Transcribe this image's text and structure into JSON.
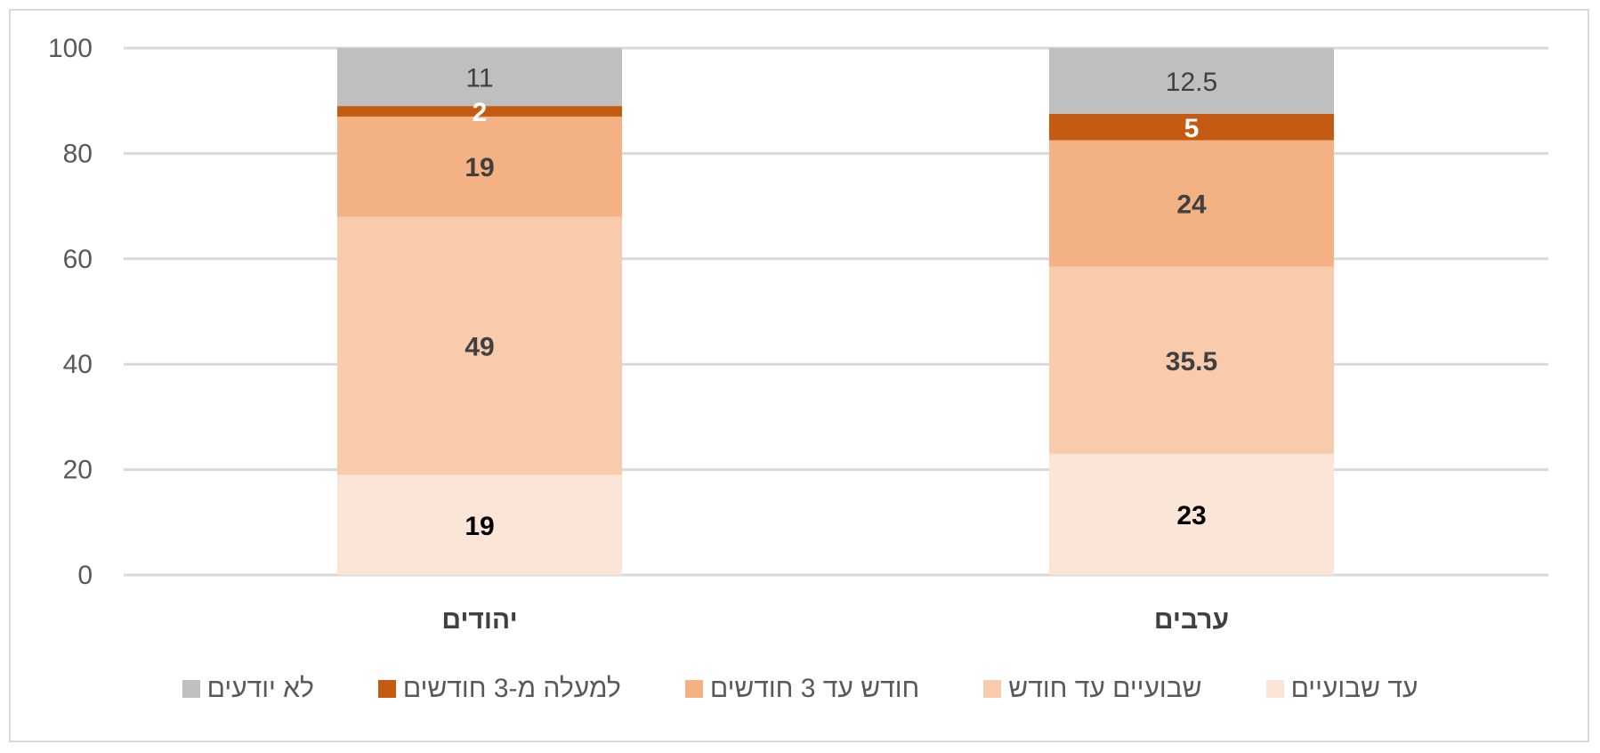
{
  "chart_data": {
    "type": "bar",
    "stacked": true,
    "title": "",
    "xlabel": "",
    "ylabel": "",
    "ylim": [
      0,
      100
    ],
    "yticks": [
      0,
      20,
      40,
      60,
      80,
      100
    ],
    "grid": true,
    "legend_position": "bottom",
    "categories": [
      "יהודים",
      "ערבים"
    ],
    "series": [
      {
        "name": "עד שבועיים",
        "values": [
          19,
          23
        ],
        "labels": [
          "19",
          "23"
        ],
        "color": "#fbe5d6",
        "label_color": "#000000",
        "label_bold": true
      },
      {
        "name": "שבועיים עד חודש",
        "values": [
          49,
          35.5
        ],
        "labels": [
          "49",
          "35.5"
        ],
        "color": "#f8cbad",
        "label_color": "#404040",
        "label_bold": true
      },
      {
        "name": "חודש עד 3 חודשים",
        "values": [
          19,
          24
        ],
        "labels": [
          "19",
          "24"
        ],
        "color": "#f4b183",
        "label_color": "#404040",
        "label_bold": true
      },
      {
        "name": "למעלה מ-3 חודשים",
        "values": [
          2,
          5
        ],
        "labels": [
          "2",
          "5"
        ],
        "color": "#c55a11",
        "label_color": "#ffffff",
        "label_bold": true
      },
      {
        "name": "לא יודעים",
        "values": [
          11,
          12.5
        ],
        "labels": [
          "11",
          "12.5"
        ],
        "color": "#bfbfbf",
        "label_color": "#404040",
        "label_bold": false
      }
    ]
  }
}
